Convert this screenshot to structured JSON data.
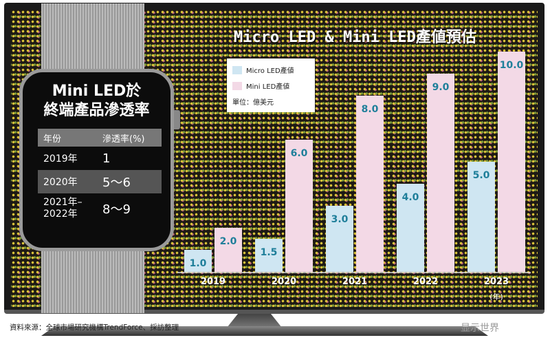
{
  "chart_data": {
    "type": "bar",
    "title": "Micro LED & Mini LED產値預估",
    "categories": [
      "2019",
      "2020",
      "2021",
      "2022",
      "2023"
    ],
    "x_unit_label": "(年)",
    "unit": "單位：億美元",
    "series": [
      {
        "name": "Micro LED產値",
        "color": "#cfe6f2",
        "values": [
          1.0,
          1.5,
          3.0,
          4.0,
          5.0
        ],
        "labels": [
          "1.0",
          "1.5",
          "3.0",
          "4.0",
          "5.0"
        ]
      },
      {
        "name": "Mini LED產値",
        "color": "#f3d9e6",
        "values": [
          2.0,
          6.0,
          8.0,
          9.0,
          10.0
        ],
        "labels": [
          "2.0",
          "6.0",
          "8.0",
          "9.0",
          "10.0"
        ]
      }
    ],
    "label_color": "#1f7f9a",
    "grid": false,
    "legend": "top-left"
  },
  "watch": {
    "title_line1": "Mini LED於",
    "title_line2": "終端產品滲透率",
    "headers": [
      "年份",
      "滲透率(%)"
    ],
    "rows": [
      [
        "2019年",
        "1"
      ],
      [
        "2020年",
        "5～6"
      ],
      [
        "2021年–\n2022年",
        "8～9"
      ]
    ]
  },
  "source": "資料來源：全球市場研究機構TrendForce、採訪整理",
  "watermark": "显示世界"
}
